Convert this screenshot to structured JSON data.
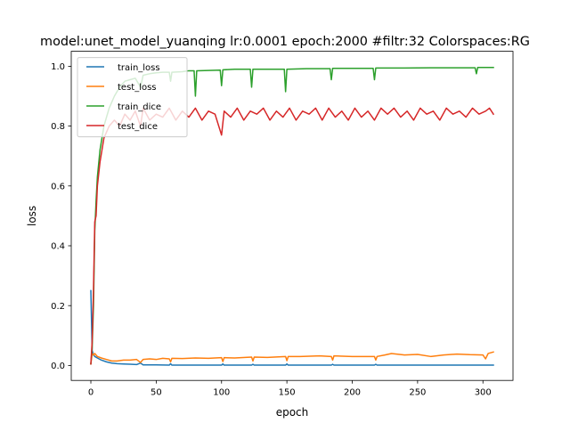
{
  "chart_data": {
    "type": "line",
    "title": "model:unet_model_yuanqing lr:0.0001 epoch:2000 #filtr:32 Colorspaces:RG",
    "xlabel": "epoch",
    "ylabel": "loss",
    "xlim": [
      -15,
      323
    ],
    "ylim": [
      -0.05,
      1.05
    ],
    "xticks": [
      0,
      50,
      100,
      150,
      200,
      250,
      300
    ],
    "yticks": [
      0.0,
      0.2,
      0.4,
      0.6,
      0.8,
      1.0
    ],
    "xtick_labels": [
      "0",
      "50",
      "100",
      "150",
      "200",
      "250",
      "300"
    ],
    "ytick_labels": [
      "0.0",
      "0.2",
      "0.4",
      "0.6",
      "0.8",
      "1.0"
    ],
    "grid": false,
    "legend_position": "top-left",
    "series": [
      {
        "name": "train_loss",
        "color": "#1f77b4",
        "points": [
          [
            0,
            0.25
          ],
          [
            1,
            0.05
          ],
          [
            2,
            0.035
          ],
          [
            3,
            0.03
          ],
          [
            5,
            0.025
          ],
          [
            8,
            0.018
          ],
          [
            12,
            0.012
          ],
          [
            16,
            0.008
          ],
          [
            20,
            0.006
          ],
          [
            25,
            0.005
          ],
          [
            30,
            0.004
          ],
          [
            35,
            0.003
          ],
          [
            38,
            0.008
          ],
          [
            40,
            0.002
          ],
          [
            50,
            0.002
          ],
          [
            60,
            0.001
          ],
          [
            61,
            0.006
          ],
          [
            62,
            0.001
          ],
          [
            80,
            0.001
          ],
          [
            100,
            0.001
          ],
          [
            101,
            0.005
          ],
          [
            102,
            0.001
          ],
          [
            123,
            0.001
          ],
          [
            124,
            0.004
          ],
          [
            125,
            0.001
          ],
          [
            149,
            0.001
          ],
          [
            150,
            0.005
          ],
          [
            151,
            0.001
          ],
          [
            184,
            0.001
          ],
          [
            185,
            0.004
          ],
          [
            186,
            0.001
          ],
          [
            217,
            0.001
          ],
          [
            218,
            0.004
          ],
          [
            219,
            0.001
          ],
          [
            250,
            0.001
          ],
          [
            290,
            0.001
          ],
          [
            300,
            0.001
          ],
          [
            308,
            0.001
          ]
        ]
      },
      {
        "name": "test_loss",
        "color": "#ff7f0e",
        "points": [
          [
            0,
            0.005
          ],
          [
            1,
            0.04
          ],
          [
            2,
            0.035
          ],
          [
            3,
            0.04
          ],
          [
            5,
            0.03
          ],
          [
            8,
            0.025
          ],
          [
            12,
            0.02
          ],
          [
            16,
            0.015
          ],
          [
            20,
            0.015
          ],
          [
            25,
            0.018
          ],
          [
            30,
            0.018
          ],
          [
            35,
            0.02
          ],
          [
            38,
            0.01
          ],
          [
            40,
            0.02
          ],
          [
            45,
            0.022
          ],
          [
            50,
            0.02
          ],
          [
            55,
            0.024
          ],
          [
            60,
            0.022
          ],
          [
            61,
            0.012
          ],
          [
            62,
            0.024
          ],
          [
            70,
            0.023
          ],
          [
            80,
            0.025
          ],
          [
            90,
            0.024
          ],
          [
            100,
            0.026
          ],
          [
            101,
            0.013
          ],
          [
            102,
            0.026
          ],
          [
            110,
            0.025
          ],
          [
            123,
            0.028
          ],
          [
            124,
            0.015
          ],
          [
            125,
            0.028
          ],
          [
            135,
            0.027
          ],
          [
            149,
            0.03
          ],
          [
            150,
            0.016
          ],
          [
            151,
            0.03
          ],
          [
            160,
            0.03
          ],
          [
            175,
            0.032
          ],
          [
            184,
            0.03
          ],
          [
            185,
            0.018
          ],
          [
            186,
            0.032
          ],
          [
            200,
            0.03
          ],
          [
            210,
            0.03
          ],
          [
            217,
            0.03
          ],
          [
            218,
            0.018
          ],
          [
            219,
            0.03
          ],
          [
            225,
            0.035
          ],
          [
            230,
            0.04
          ],
          [
            240,
            0.035
          ],
          [
            250,
            0.037
          ],
          [
            260,
            0.03
          ],
          [
            270,
            0.035
          ],
          [
            280,
            0.038
          ],
          [
            290,
            0.036
          ],
          [
            300,
            0.035
          ],
          [
            302,
            0.022
          ],
          [
            304,
            0.04
          ],
          [
            308,
            0.045
          ]
        ]
      },
      {
        "name": "train_dice",
        "color": "#2ca02c",
        "points": [
          [
            0,
            0.005
          ],
          [
            1,
            0.06
          ],
          [
            2,
            0.2
          ],
          [
            3,
            0.45
          ],
          [
            4,
            0.55
          ],
          [
            5,
            0.63
          ],
          [
            7,
            0.72
          ],
          [
            10,
            0.8
          ],
          [
            14,
            0.86
          ],
          [
            18,
            0.9
          ],
          [
            22,
            0.93
          ],
          [
            26,
            0.95
          ],
          [
            30,
            0.955
          ],
          [
            34,
            0.96
          ],
          [
            38,
            0.93
          ],
          [
            40,
            0.97
          ],
          [
            45,
            0.975
          ],
          [
            50,
            0.978
          ],
          [
            55,
            0.98
          ],
          [
            60,
            0.98
          ],
          [
            61,
            0.95
          ],
          [
            62,
            0.98
          ],
          [
            70,
            0.982
          ],
          [
            75,
            0.985
          ],
          [
            79,
            0.985
          ],
          [
            80,
            0.9
          ],
          [
            81,
            0.985
          ],
          [
            90,
            0.986
          ],
          [
            99,
            0.987
          ],
          [
            100,
            0.935
          ],
          [
            101,
            0.988
          ],
          [
            110,
            0.99
          ],
          [
            122,
            0.99
          ],
          [
            123,
            0.93
          ],
          [
            124,
            0.99
          ],
          [
            135,
            0.99
          ],
          [
            148,
            0.99
          ],
          [
            149,
            0.915
          ],
          [
            150,
            0.99
          ],
          [
            165,
            0.992
          ],
          [
            183,
            0.992
          ],
          [
            184,
            0.955
          ],
          [
            185,
            0.993
          ],
          [
            200,
            0.993
          ],
          [
            216,
            0.993
          ],
          [
            217,
            0.955
          ],
          [
            218,
            0.994
          ],
          [
            240,
            0.994
          ],
          [
            260,
            0.995
          ],
          [
            280,
            0.995
          ],
          [
            294,
            0.995
          ],
          [
            295,
            0.975
          ],
          [
            296,
            0.996
          ],
          [
            308,
            0.996
          ]
        ]
      },
      {
        "name": "test_dice",
        "color": "#d62728",
        "points": [
          [
            0,
            0.005
          ],
          [
            1,
            0.08
          ],
          [
            2,
            0.25
          ],
          [
            3,
            0.48
          ],
          [
            4,
            0.5
          ],
          [
            5,
            0.6
          ],
          [
            7,
            0.68
          ],
          [
            10,
            0.76
          ],
          [
            14,
            0.8
          ],
          [
            18,
            0.82
          ],
          [
            22,
            0.8
          ],
          [
            26,
            0.84
          ],
          [
            30,
            0.82
          ],
          [
            34,
            0.85
          ],
          [
            38,
            0.8
          ],
          [
            40,
            0.86
          ],
          [
            45,
            0.82
          ],
          [
            50,
            0.84
          ],
          [
            55,
            0.83
          ],
          [
            60,
            0.86
          ],
          [
            65,
            0.82
          ],
          [
            70,
            0.85
          ],
          [
            75,
            0.83
          ],
          [
            80,
            0.86
          ],
          [
            85,
            0.82
          ],
          [
            90,
            0.85
          ],
          [
            95,
            0.84
          ],
          [
            100,
            0.77
          ],
          [
            102,
            0.85
          ],
          [
            107,
            0.83
          ],
          [
            112,
            0.86
          ],
          [
            117,
            0.82
          ],
          [
            122,
            0.85
          ],
          [
            127,
            0.84
          ],
          [
            132,
            0.86
          ],
          [
            137,
            0.82
          ],
          [
            142,
            0.85
          ],
          [
            147,
            0.83
          ],
          [
            152,
            0.86
          ],
          [
            157,
            0.82
          ],
          [
            162,
            0.85
          ],
          [
            167,
            0.84
          ],
          [
            172,
            0.86
          ],
          [
            177,
            0.82
          ],
          [
            182,
            0.86
          ],
          [
            187,
            0.83
          ],
          [
            192,
            0.85
          ],
          [
            197,
            0.82
          ],
          [
            202,
            0.86
          ],
          [
            207,
            0.83
          ],
          [
            212,
            0.85
          ],
          [
            217,
            0.82
          ],
          [
            222,
            0.86
          ],
          [
            227,
            0.84
          ],
          [
            232,
            0.86
          ],
          [
            237,
            0.83
          ],
          [
            242,
            0.85
          ],
          [
            247,
            0.82
          ],
          [
            252,
            0.86
          ],
          [
            257,
            0.84
          ],
          [
            262,
            0.85
          ],
          [
            267,
            0.82
          ],
          [
            272,
            0.86
          ],
          [
            277,
            0.84
          ],
          [
            282,
            0.85
          ],
          [
            287,
            0.83
          ],
          [
            292,
            0.86
          ],
          [
            297,
            0.84
          ],
          [
            302,
            0.85
          ],
          [
            305,
            0.86
          ],
          [
            308,
            0.84
          ]
        ]
      }
    ]
  }
}
